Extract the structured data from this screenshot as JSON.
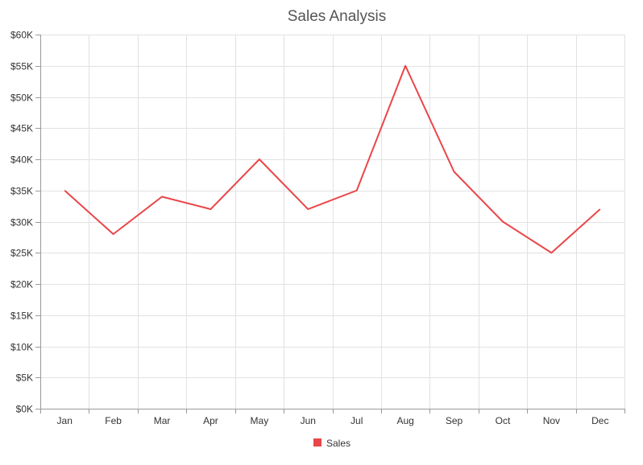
{
  "chart_data": {
    "type": "line",
    "title": "Sales Analysis",
    "xlabel": "",
    "ylabel": "",
    "categories": [
      "Jan",
      "Feb",
      "Mar",
      "Apr",
      "May",
      "Jun",
      "Jul",
      "Aug",
      "Sep",
      "Oct",
      "Nov",
      "Dec"
    ],
    "series": [
      {
        "name": "Sales",
        "color": "#E94649",
        "values": [
          35000,
          28000,
          34000,
          32000,
          40000,
          32000,
          35000,
          55000,
          38000,
          30000,
          25000,
          32000
        ]
      }
    ],
    "ylim": [
      0,
      60000
    ],
    "yticks": [
      0,
      5000,
      10000,
      15000,
      20000,
      25000,
      30000,
      35000,
      40000,
      45000,
      50000,
      55000,
      60000
    ],
    "ytick_labels": [
      "$0K",
      "$5K",
      "$10K",
      "$15K",
      "$20K",
      "$25K",
      "$30K",
      "$35K",
      "$40K",
      "$45K",
      "$50K",
      "$55K",
      "$60K"
    ],
    "grid": true,
    "legend": "bottom-center"
  }
}
